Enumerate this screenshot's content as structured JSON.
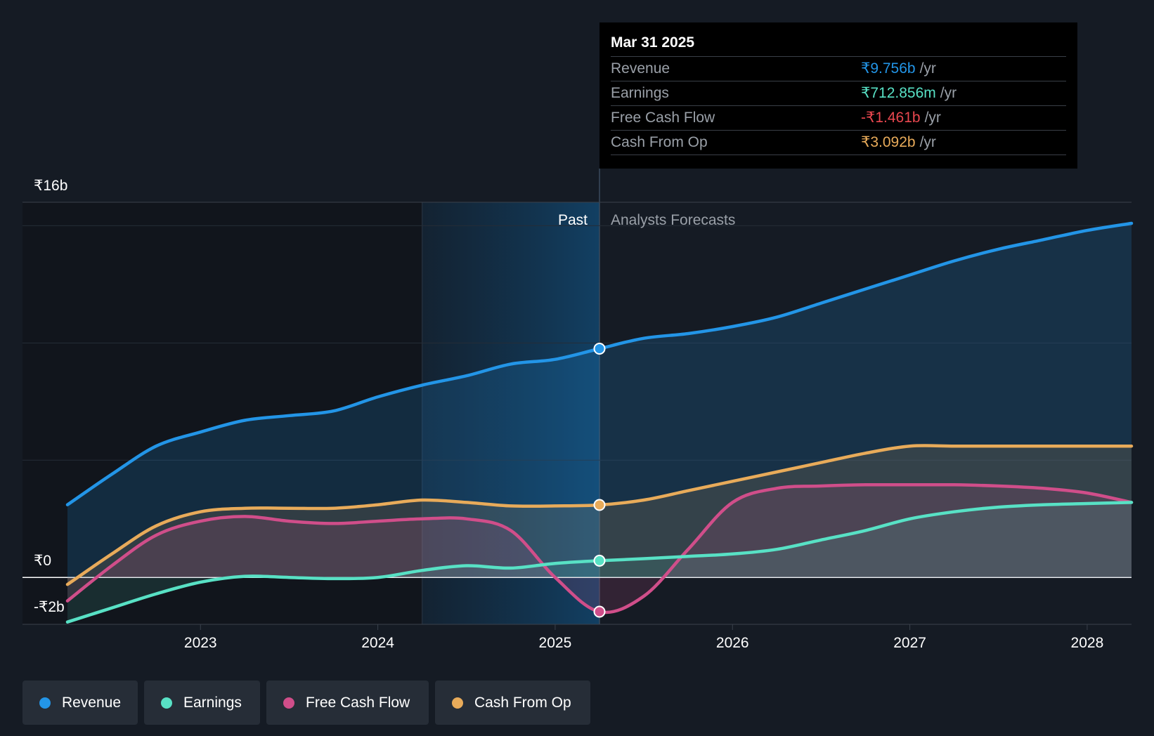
{
  "chart_data": {
    "type": "area",
    "y_axis_labels": {
      "top": "₹16b",
      "zero": "₹0",
      "bottom": "-₹2b"
    },
    "ylim": [
      -2,
      16
    ],
    "x_range": [
      2022.25,
      2028.25
    ],
    "x_ticks": [
      {
        "value": 2023,
        "label": "2023"
      },
      {
        "value": 2024,
        "label": "2024"
      },
      {
        "value": 2025,
        "label": "2025"
      },
      {
        "value": 2026,
        "label": "2026"
      },
      {
        "value": 2027,
        "label": "2027"
      },
      {
        "value": 2028,
        "label": "2028"
      }
    ],
    "divider_x": 2025.25,
    "highlight_start_x": 2024.25,
    "past_label": "Past",
    "forecast_label": "Analysts Forecasts",
    "series": [
      {
        "name": "Revenue",
        "color": "#2395e7",
        "points": [
          [
            2022.25,
            3.1
          ],
          [
            2022.5,
            4.4
          ],
          [
            2022.75,
            5.6
          ],
          [
            2023.0,
            6.2
          ],
          [
            2023.25,
            6.7
          ],
          [
            2023.5,
            6.9
          ],
          [
            2023.75,
            7.1
          ],
          [
            2024.0,
            7.7
          ],
          [
            2024.25,
            8.2
          ],
          [
            2024.5,
            8.6
          ],
          [
            2024.75,
            9.1
          ],
          [
            2025.0,
            9.3
          ],
          [
            2025.25,
            9.756
          ],
          [
            2025.5,
            10.2
          ],
          [
            2025.75,
            10.4
          ],
          [
            2026.0,
            10.7
          ],
          [
            2026.25,
            11.1
          ],
          [
            2026.5,
            11.7
          ],
          [
            2026.75,
            12.3
          ],
          [
            2027.0,
            12.9
          ],
          [
            2027.25,
            13.5
          ],
          [
            2027.5,
            14.0
          ],
          [
            2027.75,
            14.4
          ],
          [
            2028.0,
            14.8
          ],
          [
            2028.25,
            15.1
          ]
        ]
      },
      {
        "name": "Earnings",
        "color": "#58e1c5",
        "points": [
          [
            2022.25,
            -1.9
          ],
          [
            2022.5,
            -1.3
          ],
          [
            2022.75,
            -0.7
          ],
          [
            2023.0,
            -0.2
          ],
          [
            2023.25,
            0.05
          ],
          [
            2023.5,
            0.0
          ],
          [
            2023.75,
            -0.05
          ],
          [
            2024.0,
            0.0
          ],
          [
            2024.25,
            0.3
          ],
          [
            2024.5,
            0.5
          ],
          [
            2024.75,
            0.4
          ],
          [
            2025.0,
            0.6
          ],
          [
            2025.25,
            0.713
          ],
          [
            2025.5,
            0.8
          ],
          [
            2025.75,
            0.9
          ],
          [
            2026.0,
            1.0
          ],
          [
            2026.25,
            1.2
          ],
          [
            2026.5,
            1.6
          ],
          [
            2026.75,
            2.0
          ],
          [
            2027.0,
            2.5
          ],
          [
            2027.25,
            2.8
          ],
          [
            2027.5,
            3.0
          ],
          [
            2027.75,
            3.1
          ],
          [
            2028.0,
            3.15
          ],
          [
            2028.25,
            3.2
          ]
        ]
      },
      {
        "name": "Free Cash Flow",
        "color": "#d04e8a",
        "points": [
          [
            2022.25,
            -1.0
          ],
          [
            2022.5,
            0.5
          ],
          [
            2022.75,
            1.8
          ],
          [
            2023.0,
            2.4
          ],
          [
            2023.25,
            2.6
          ],
          [
            2023.5,
            2.4
          ],
          [
            2023.75,
            2.3
          ],
          [
            2024.0,
            2.4
          ],
          [
            2024.25,
            2.5
          ],
          [
            2024.5,
            2.5
          ],
          [
            2024.75,
            2.0
          ],
          [
            2025.0,
            0.0
          ],
          [
            2025.25,
            -1.461
          ],
          [
            2025.5,
            -0.8
          ],
          [
            2025.75,
            1.2
          ],
          [
            2026.0,
            3.2
          ],
          [
            2026.25,
            3.8
          ],
          [
            2026.5,
            3.9
          ],
          [
            2026.75,
            3.95
          ],
          [
            2027.0,
            3.95
          ],
          [
            2027.25,
            3.95
          ],
          [
            2027.5,
            3.9
          ],
          [
            2027.75,
            3.8
          ],
          [
            2028.0,
            3.6
          ],
          [
            2028.25,
            3.2
          ]
        ]
      },
      {
        "name": "Cash From Op",
        "color": "#e8ab5a",
        "points": [
          [
            2022.25,
            -0.3
          ],
          [
            2022.5,
            1.0
          ],
          [
            2022.75,
            2.2
          ],
          [
            2023.0,
            2.8
          ],
          [
            2023.25,
            2.95
          ],
          [
            2023.5,
            2.95
          ],
          [
            2023.75,
            2.95
          ],
          [
            2024.0,
            3.1
          ],
          [
            2024.25,
            3.3
          ],
          [
            2024.5,
            3.2
          ],
          [
            2024.75,
            3.05
          ],
          [
            2025.0,
            3.05
          ],
          [
            2025.25,
            3.092
          ],
          [
            2025.5,
            3.3
          ],
          [
            2025.75,
            3.7
          ],
          [
            2026.0,
            4.1
          ],
          [
            2026.25,
            4.5
          ],
          [
            2026.5,
            4.9
          ],
          [
            2026.75,
            5.3
          ],
          [
            2027.0,
            5.6
          ],
          [
            2027.25,
            5.6
          ],
          [
            2027.5,
            5.6
          ],
          [
            2027.75,
            5.6
          ],
          [
            2028.0,
            5.6
          ],
          [
            2028.25,
            5.6
          ]
        ]
      }
    ]
  },
  "tooltip": {
    "date": "Mar 31 2025",
    "rows": [
      {
        "name": "Revenue",
        "value": "₹9.756b",
        "unit": "/yr",
        "color": "#2395e7"
      },
      {
        "name": "Earnings",
        "value": "₹712.856m",
        "unit": "/yr",
        "color": "#58e1c5"
      },
      {
        "name": "Free Cash Flow",
        "value": "-₹1.461b",
        "unit": "/yr",
        "color": "#e8474f"
      },
      {
        "name": "Cash From Op",
        "value": "₹3.092b",
        "unit": "/yr",
        "color": "#e8ab5a"
      }
    ]
  },
  "legend": [
    {
      "label": "Revenue",
      "color": "#2395e7"
    },
    {
      "label": "Earnings",
      "color": "#58e1c5"
    },
    {
      "label": "Free Cash Flow",
      "color": "#d04e8a"
    },
    {
      "label": "Cash From Op",
      "color": "#e8ab5a"
    }
  ]
}
